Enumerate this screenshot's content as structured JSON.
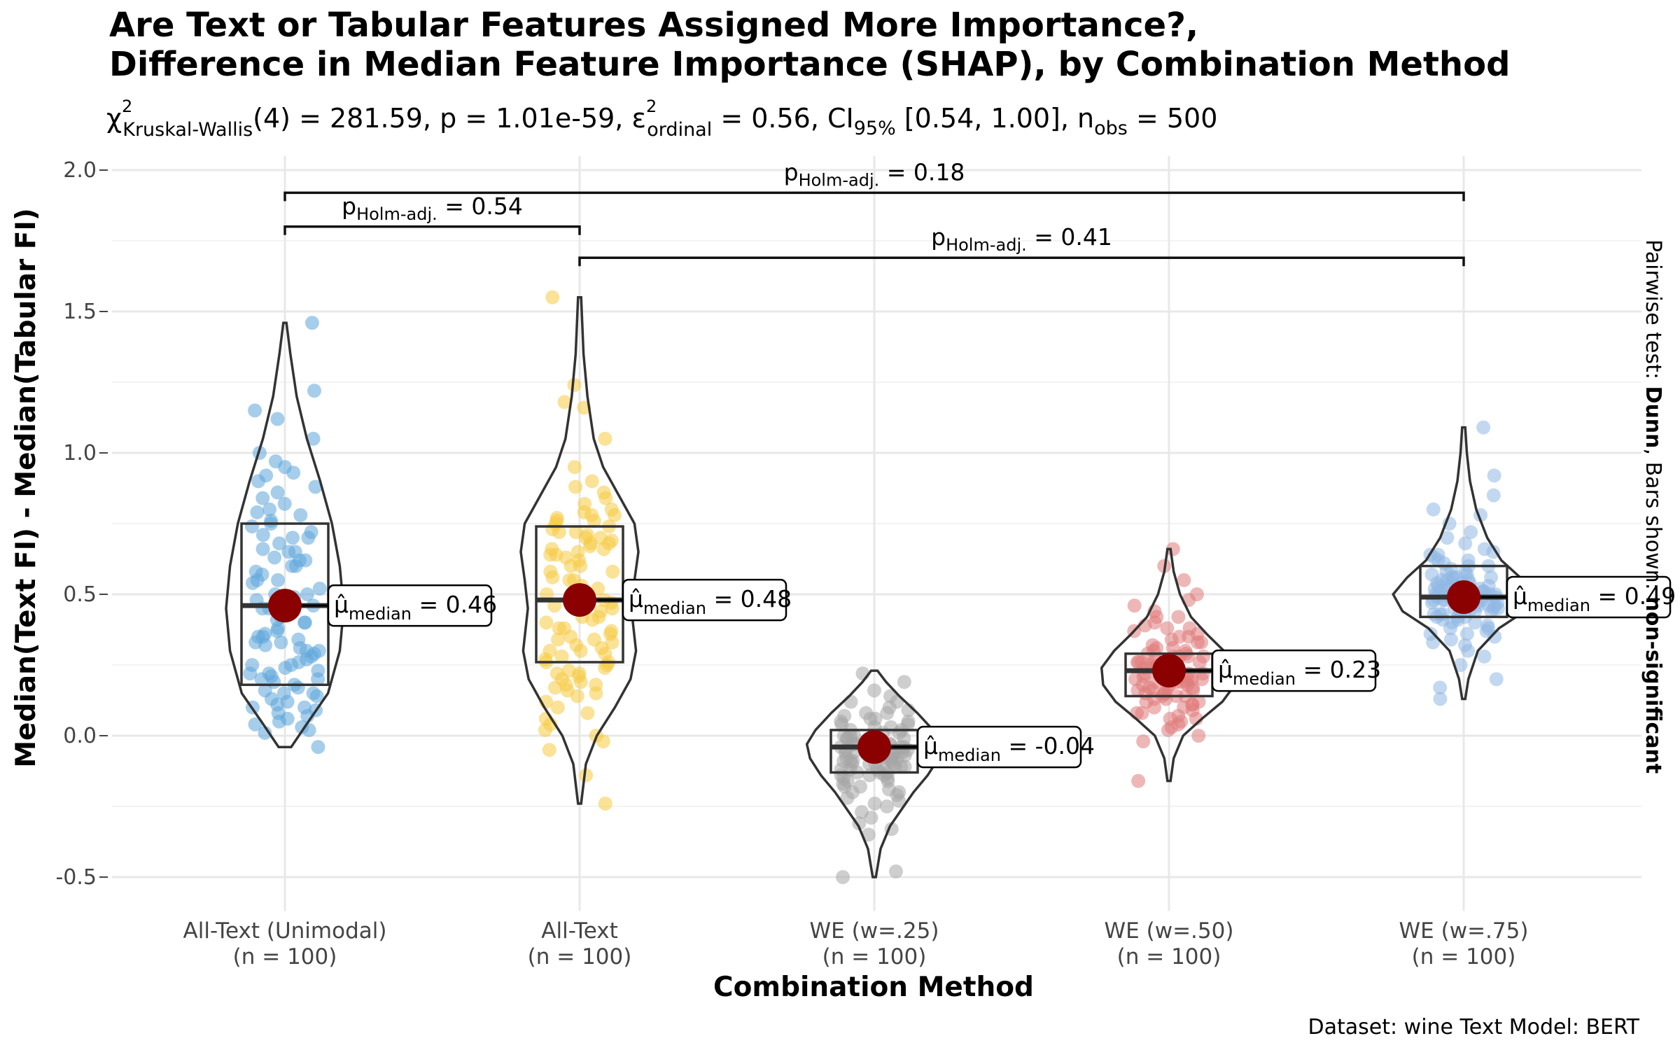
{
  "chart_data": {
    "type": "violin",
    "title_lines": [
      "Are Text or Tabular Features Assigned More Importance?,",
      "Difference in Median Feature Importance (SHAP), by Combination Method"
    ],
    "subtitle": {
      "chi": "χ",
      "sup": "2",
      "sub": "Kruskal-Wallis",
      "part1": "(4) = 281.59, p = 1.01e-59, ",
      "eps": "ε",
      "eps_sub": "ordinal",
      "part2": " = 0.56, CI",
      "ci_sub": "95%",
      "part3": " [0.54, 1.00], n",
      "nobs_sub": "obs",
      "part4": " = 500"
    },
    "xlabel": "Combination Method",
    "ylabel": "Median(Text FI) - Median(Tabular FI)",
    "ylim": [
      -0.62,
      2.05
    ],
    "y_ticks": [
      {
        "value": -0.5,
        "label": "-0.5"
      },
      {
        "value": 0.0,
        "label": "0.0"
      },
      {
        "value": 0.5,
        "label": "0.5"
      },
      {
        "value": 1.0,
        "label": "1.0"
      },
      {
        "value": 1.5,
        "label": "1.5"
      },
      {
        "value": 2.0,
        "label": "2.0"
      }
    ],
    "caption": "Dataset:  wine Text Model:  BERT",
    "side_label": {
      "part1": "Pairwise test: ",
      "bold1": "Dunn",
      "part2": ", Bars shown: ",
      "bold2": "non-significant"
    },
    "label_symbol": "μ̂",
    "label_sub": "median",
    "groups": [
      {
        "name": "All-Text (Unimodal)",
        "n_label": "(n = 100)",
        "color": "#5DA5DA",
        "median": 0.46,
        "median_label": " = 0.46",
        "box": {
          "q1": 0.18,
          "med": 0.46,
          "q3": 0.75
        },
        "violin_range": [
          -0.04,
          1.46
        ],
        "density": [
          [
            -0.04,
            0.08
          ],
          [
            0.05,
            0.3
          ],
          [
            0.15,
            0.55
          ],
          [
            0.3,
            0.7
          ],
          [
            0.45,
            0.75
          ],
          [
            0.6,
            0.7
          ],
          [
            0.75,
            0.6
          ],
          [
            0.9,
            0.45
          ],
          [
            1.05,
            0.28
          ],
          [
            1.2,
            0.15
          ],
          [
            1.35,
            0.07
          ],
          [
            1.46,
            0.02
          ]
        ],
        "points": [
          1.46,
          1.22,
          1.15,
          1.12,
          1.05,
          1.0,
          0.97,
          0.95,
          0.93,
          0.92,
          0.9,
          0.88,
          0.86,
          0.84,
          0.82,
          0.8,
          0.79,
          0.78,
          0.76,
          0.75,
          0.74,
          0.72,
          0.71,
          0.7,
          0.68,
          0.66,
          0.65,
          0.63,
          0.62,
          0.6,
          0.58,
          0.57,
          0.55,
          0.54,
          0.52,
          0.5,
          0.49,
          0.47,
          0.46,
          0.45,
          0.44,
          0.42,
          0.41,
          0.4,
          0.38,
          0.37,
          0.36,
          0.35,
          0.34,
          0.33,
          0.32,
          0.31,
          0.3,
          0.29,
          0.28,
          0.27,
          0.26,
          0.25,
          0.24,
          0.23,
          0.22,
          0.21,
          0.2,
          0.19,
          0.18,
          0.17,
          0.16,
          0.15,
          0.14,
          0.13,
          0.12,
          0.11,
          0.1,
          0.09,
          0.08,
          0.07,
          0.06,
          0.05,
          0.04,
          0.03,
          0.02,
          0.01,
          -0.04,
          0.55,
          0.6,
          0.65,
          0.7,
          0.5,
          0.45,
          0.4,
          0.35,
          0.3,
          0.25,
          0.2,
          0.15,
          0.1,
          0.62,
          0.48,
          0.33,
          0.22
        ]
      },
      {
        "name": "All-Text",
        "n_label": "(n = 100)",
        "color": "#F5CB42",
        "median": 0.48,
        "median_label": " = 0.48",
        "box": {
          "q1": 0.26,
          "med": 0.48,
          "q3": 0.74
        },
        "violin_range": [
          -0.24,
          1.55
        ],
        "density": [
          [
            -0.24,
            0.02
          ],
          [
            -0.1,
            0.08
          ],
          [
            0.0,
            0.22
          ],
          [
            0.1,
            0.45
          ],
          [
            0.2,
            0.65
          ],
          [
            0.3,
            0.72
          ],
          [
            0.45,
            0.66
          ],
          [
            0.55,
            0.7
          ],
          [
            0.65,
            0.75
          ],
          [
            0.75,
            0.7
          ],
          [
            0.85,
            0.5
          ],
          [
            0.95,
            0.3
          ],
          [
            1.05,
            0.18
          ],
          [
            1.2,
            0.1
          ],
          [
            1.35,
            0.05
          ],
          [
            1.55,
            0.02
          ]
        ],
        "points": [
          1.55,
          1.24,
          1.18,
          1.16,
          1.05,
          0.95,
          0.9,
          0.88,
          0.86,
          0.84,
          0.82,
          0.8,
          0.79,
          0.78,
          0.77,
          0.76,
          0.75,
          0.74,
          0.73,
          0.72,
          0.71,
          0.7,
          0.69,
          0.68,
          0.67,
          0.66,
          0.65,
          0.64,
          0.63,
          0.62,
          0.6,
          0.58,
          0.56,
          0.55,
          0.53,
          0.52,
          0.5,
          0.49,
          0.48,
          0.47,
          0.45,
          0.44,
          0.42,
          0.41,
          0.4,
          0.38,
          0.37,
          0.36,
          0.35,
          0.34,
          0.33,
          0.32,
          0.31,
          0.3,
          0.29,
          0.28,
          0.27,
          0.26,
          0.25,
          0.24,
          0.23,
          0.22,
          0.21,
          0.2,
          0.19,
          0.18,
          0.17,
          0.16,
          0.15,
          0.14,
          0.12,
          0.1,
          0.08,
          0.06,
          0.04,
          0.02,
          0.0,
          -0.02,
          -0.05,
          -0.14,
          -0.24,
          0.72,
          0.78,
          0.7,
          0.66,
          0.6,
          0.55,
          0.5,
          0.46,
          0.42,
          0.38,
          0.34,
          0.3,
          0.26,
          0.22,
          0.18,
          0.76,
          0.68,
          0.64,
          0.58
        ]
      },
      {
        "name": "WE (w=.25)",
        "n_label": "(n = 100)",
        "color": "#A5A5A5",
        "median": -0.04,
        "median_label": " = -0.04",
        "box": {
          "q1": -0.13,
          "med": -0.04,
          "q3": 0.02
        },
        "violin_range": [
          -0.5,
          0.23
        ],
        "density": [
          [
            -0.5,
            0.02
          ],
          [
            -0.4,
            0.08
          ],
          [
            -0.32,
            0.2
          ],
          [
            -0.26,
            0.35
          ],
          [
            -0.2,
            0.5
          ],
          [
            -0.14,
            0.68
          ],
          [
            -0.08,
            0.82
          ],
          [
            -0.03,
            0.86
          ],
          [
            0.02,
            0.75
          ],
          [
            0.08,
            0.55
          ],
          [
            0.14,
            0.32
          ],
          [
            0.19,
            0.15
          ],
          [
            0.23,
            0.04
          ]
        ],
        "points": [
          0.22,
          0.19,
          0.16,
          0.14,
          0.12,
          0.1,
          0.09,
          0.08,
          0.07,
          0.06,
          0.05,
          0.04,
          0.03,
          0.02,
          0.01,
          0.0,
          0.0,
          -0.01,
          -0.01,
          -0.02,
          -0.02,
          -0.03,
          -0.03,
          -0.04,
          -0.04,
          -0.04,
          -0.05,
          -0.05,
          -0.06,
          -0.06,
          -0.07,
          -0.07,
          -0.08,
          -0.08,
          -0.09,
          -0.09,
          -0.1,
          -0.1,
          -0.11,
          -0.11,
          -0.12,
          -0.12,
          -0.13,
          -0.13,
          -0.14,
          -0.14,
          -0.15,
          -0.16,
          -0.17,
          -0.18,
          -0.19,
          -0.2,
          -0.21,
          -0.22,
          -0.23,
          -0.25,
          -0.27,
          -0.29,
          -0.31,
          -0.33,
          -0.35,
          -0.5,
          -0.48,
          0.0,
          -0.02,
          -0.04,
          -0.06,
          -0.08,
          -0.1,
          0.01,
          0.03,
          0.05,
          -0.03,
          -0.05,
          -0.07,
          -0.09,
          -0.11,
          -0.13,
          -0.15,
          -0.02,
          0.02,
          -0.06,
          -0.12,
          -0.18,
          0.04,
          -0.01,
          -0.03,
          -0.05,
          -0.08,
          -0.1,
          0.06,
          -0.14,
          -0.16,
          -0.2,
          -0.24,
          0.08,
          -0.07,
          -0.09,
          -0.11,
          0.12
        ]
      },
      {
        "name": "WE (w=.50)",
        "n_label": "(n = 100)",
        "color": "#E07B7B",
        "median": 0.23,
        "median_label": " = 0.23",
        "box": {
          "q1": 0.14,
          "med": 0.23,
          "q3": 0.29
        },
        "violin_range": [
          -0.16,
          0.66
        ],
        "density": [
          [
            -0.16,
            0.02
          ],
          [
            -0.08,
            0.06
          ],
          [
            0.0,
            0.18
          ],
          [
            0.06,
            0.42
          ],
          [
            0.12,
            0.68
          ],
          [
            0.18,
            0.84
          ],
          [
            0.24,
            0.86
          ],
          [
            0.3,
            0.7
          ],
          [
            0.36,
            0.48
          ],
          [
            0.42,
            0.28
          ],
          [
            0.5,
            0.14
          ],
          [
            0.58,
            0.06
          ],
          [
            0.66,
            0.02
          ]
        ],
        "points": [
          0.66,
          0.6,
          0.55,
          0.5,
          0.48,
          0.46,
          0.44,
          0.42,
          0.4,
          0.39,
          0.38,
          0.37,
          0.36,
          0.35,
          0.34,
          0.33,
          0.32,
          0.31,
          0.3,
          0.29,
          0.28,
          0.28,
          0.27,
          0.27,
          0.26,
          0.26,
          0.25,
          0.25,
          0.24,
          0.24,
          0.23,
          0.23,
          0.22,
          0.22,
          0.21,
          0.21,
          0.2,
          0.2,
          0.19,
          0.19,
          0.18,
          0.18,
          0.17,
          0.17,
          0.16,
          0.16,
          0.15,
          0.15,
          0.14,
          0.14,
          0.13,
          0.12,
          0.11,
          0.1,
          0.09,
          0.08,
          0.07,
          0.06,
          0.05,
          0.04,
          0.02,
          0.0,
          -0.02,
          -0.16,
          0.3,
          0.25,
          0.2,
          0.15,
          0.1,
          0.35,
          0.28,
          0.22,
          0.18,
          0.12,
          0.27,
          0.24,
          0.21,
          0.19,
          0.16,
          0.13,
          0.33,
          0.29,
          0.26,
          0.23,
          0.17,
          0.11,
          0.08,
          0.31,
          0.26,
          0.2,
          0.14,
          0.24,
          0.22,
          0.38,
          0.06,
          0.42,
          0.03,
          0.28,
          0.19,
          0.25
        ]
      },
      {
        "name": "WE (w=.75)",
        "n_label": "(n = 100)",
        "color": "#8FB8E3",
        "median": 0.49,
        "median_label": " = 0.49",
        "box": {
          "q1": 0.42,
          "med": 0.49,
          "q3": 0.6
        },
        "violin_range": [
          0.13,
          1.09
        ],
        "density": [
          [
            0.13,
            0.02
          ],
          [
            0.2,
            0.06
          ],
          [
            0.3,
            0.18
          ],
          [
            0.38,
            0.45
          ],
          [
            0.44,
            0.78
          ],
          [
            0.5,
            0.9
          ],
          [
            0.56,
            0.72
          ],
          [
            0.62,
            0.48
          ],
          [
            0.7,
            0.3
          ],
          [
            0.8,
            0.16
          ],
          [
            0.9,
            0.08
          ],
          [
            1.0,
            0.04
          ],
          [
            1.09,
            0.02
          ]
        ],
        "points": [
          1.09,
          0.92,
          0.85,
          0.8,
          0.78,
          0.75,
          0.72,
          0.7,
          0.68,
          0.66,
          0.65,
          0.64,
          0.63,
          0.62,
          0.61,
          0.6,
          0.59,
          0.58,
          0.57,
          0.56,
          0.56,
          0.55,
          0.55,
          0.54,
          0.54,
          0.53,
          0.53,
          0.52,
          0.52,
          0.51,
          0.51,
          0.5,
          0.5,
          0.49,
          0.49,
          0.49,
          0.48,
          0.48,
          0.47,
          0.47,
          0.46,
          0.46,
          0.45,
          0.45,
          0.44,
          0.44,
          0.43,
          0.43,
          0.42,
          0.42,
          0.41,
          0.4,
          0.39,
          0.38,
          0.37,
          0.36,
          0.35,
          0.34,
          0.33,
          0.32,
          0.3,
          0.28,
          0.25,
          0.2,
          0.17,
          0.13,
          0.5,
          0.52,
          0.48,
          0.46,
          0.54,
          0.44,
          0.56,
          0.58,
          0.42,
          0.6,
          0.4,
          0.5,
          0.47,
          0.53,
          0.45,
          0.55,
          0.43,
          0.57,
          0.41,
          0.62,
          0.38,
          0.64,
          0.36,
          0.49,
          0.51,
          0.5,
          0.48,
          0.52,
          0.46,
          0.54,
          0.44,
          0.56,
          0.5,
          0.49
        ]
      }
    ],
    "brackets": [
      {
        "from": 0,
        "to": 1,
        "y": 1.8,
        "p_value": " = 0.54"
      },
      {
        "from": 0,
        "to": 4,
        "y": 1.92,
        "p_value": " = 0.18"
      },
      {
        "from": 1,
        "to": 4,
        "y": 1.69,
        "p_value": " = 0.41"
      }
    ],
    "bracket_p": "p",
    "bracket_sub": "Holm-adj.",
    "median_color": "#8B0000"
  }
}
